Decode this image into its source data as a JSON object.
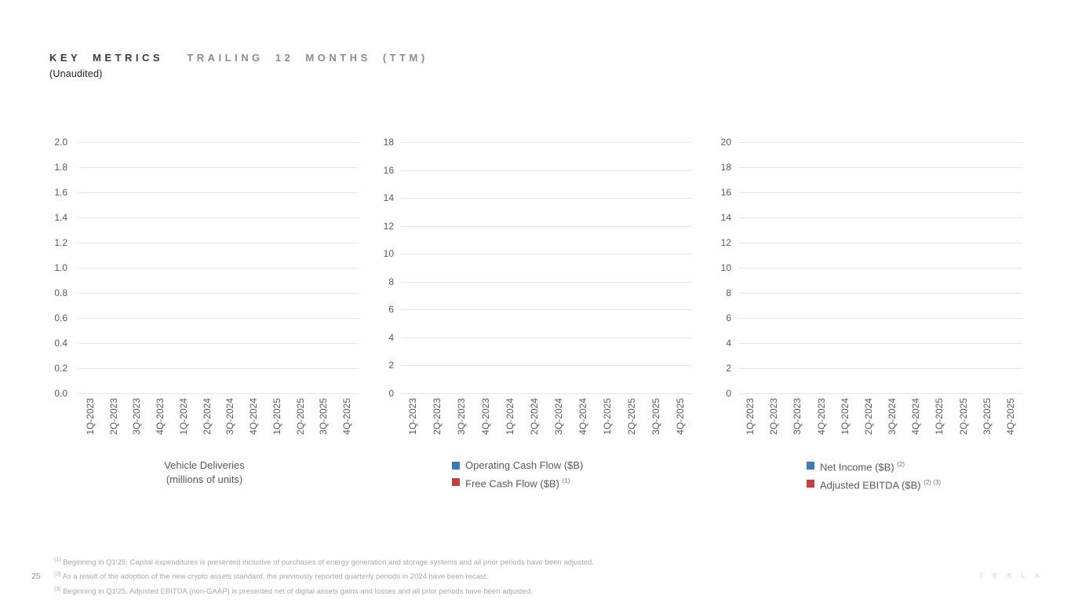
{
  "page": {
    "title_primary": "KEY METRICS",
    "title_secondary": "TRAILING 12 MONTHS (TTM)",
    "subtitle": "(Unaudited)",
    "page_number": "25",
    "brand_wordmark": "T E S L A"
  },
  "colors": {
    "blue": "#3d7ab7",
    "red": "#c0413d",
    "gridline": "#e4e4e4",
    "axis_text": "#595959",
    "footnote_text": "#a9a9a9"
  },
  "categories": [
    "1Q-2023",
    "2Q-2023",
    "3Q-2023",
    "4Q-2023",
    "1Q-2024",
    "2Q-2024",
    "3Q-2024",
    "4Q-2024",
    "1Q-2025",
    "2Q-2025",
    "3Q-2025",
    "4Q-2025"
  ],
  "chart_data": [
    {
      "type": "bar",
      "title": "Vehicle Deliveries",
      "title_line2": "(millions of units)",
      "categories": [
        "1Q-2023",
        "2Q-2023",
        "3Q-2023",
        "4Q-2023",
        "1Q-2024",
        "2Q-2024",
        "3Q-2024",
        "4Q-2024",
        "1Q-2025",
        "2Q-2025",
        "3Q-2025",
        "4Q-2025"
      ],
      "series": [],
      "values_plotted": false,
      "note": "axes and gridlines only, no bars rendered",
      "ylim": [
        0,
        2.0
      ],
      "ytick_step": 0.2,
      "ytick_labels": [
        "2.0",
        "1.8",
        "1.6",
        "1.4",
        "1.2",
        "1.0",
        "0.8",
        "0.6",
        "0.4",
        "0.2",
        "0.0"
      ],
      "grid": true,
      "legend_position": "none"
    },
    {
      "type": "bar",
      "title": "",
      "categories": [
        "1Q-2023",
        "2Q-2023",
        "3Q-2023",
        "4Q-2023",
        "1Q-2024",
        "2Q-2024",
        "3Q-2024",
        "4Q-2024",
        "1Q-2025",
        "2Q-2025",
        "3Q-2025",
        "4Q-2025"
      ],
      "series": [
        {
          "name": "Operating Cash Flow ($B)",
          "superscript": "",
          "color": "blue",
          "values": []
        },
        {
          "name": "Free Cash Flow ($B)",
          "superscript": "(1)",
          "color": "red",
          "values": []
        }
      ],
      "values_plotted": false,
      "note": "axes and gridlines only, no bars rendered",
      "ylim": [
        0,
        18
      ],
      "ytick_step": 2,
      "ytick_labels": [
        "18",
        "16",
        "14",
        "12",
        "10",
        "8",
        "6",
        "4",
        "2",
        "0"
      ],
      "grid": true,
      "legend_position": "bottom"
    },
    {
      "type": "bar",
      "title": "",
      "categories": [
        "1Q-2023",
        "2Q-2023",
        "3Q-2023",
        "4Q-2023",
        "1Q-2024",
        "2Q-2024",
        "3Q-2024",
        "4Q-2024",
        "1Q-2025",
        "2Q-2025",
        "3Q-2025",
        "4Q-2025"
      ],
      "series": [
        {
          "name": "Net Income ($B)",
          "superscript": "(2)",
          "color": "blue",
          "values": []
        },
        {
          "name": "Adjusted EBITDA ($B)",
          "superscript": "(2) (3)",
          "color": "red",
          "values": []
        }
      ],
      "values_plotted": false,
      "note": "axes and gridlines only, no bars rendered",
      "ylim": [
        0,
        20
      ],
      "ytick_step": 2,
      "ytick_labels": [
        "20",
        "18",
        "16",
        "14",
        "12",
        "10",
        "8",
        "6",
        "4",
        "2",
        "0"
      ],
      "grid": true,
      "legend_position": "bottom"
    }
  ],
  "footnotes": [
    {
      "marker": "(1)",
      "text": "Beginning in Q1'25, Capital expenditures is presented inclusive of purchases of energy generation and storage systems and all prior periods have been adjusted."
    },
    {
      "marker": "(2)",
      "text": "As a result of the adoption of the new crypto assets standard, the previously reported quarterly periods in 2024 have been recast."
    },
    {
      "marker": "(3)",
      "text": "Beginning in Q1'25, Adjusted EBITDA (non-GAAP) is presented net of digital assets gains and losses and all prior periods have been adjusted."
    }
  ]
}
